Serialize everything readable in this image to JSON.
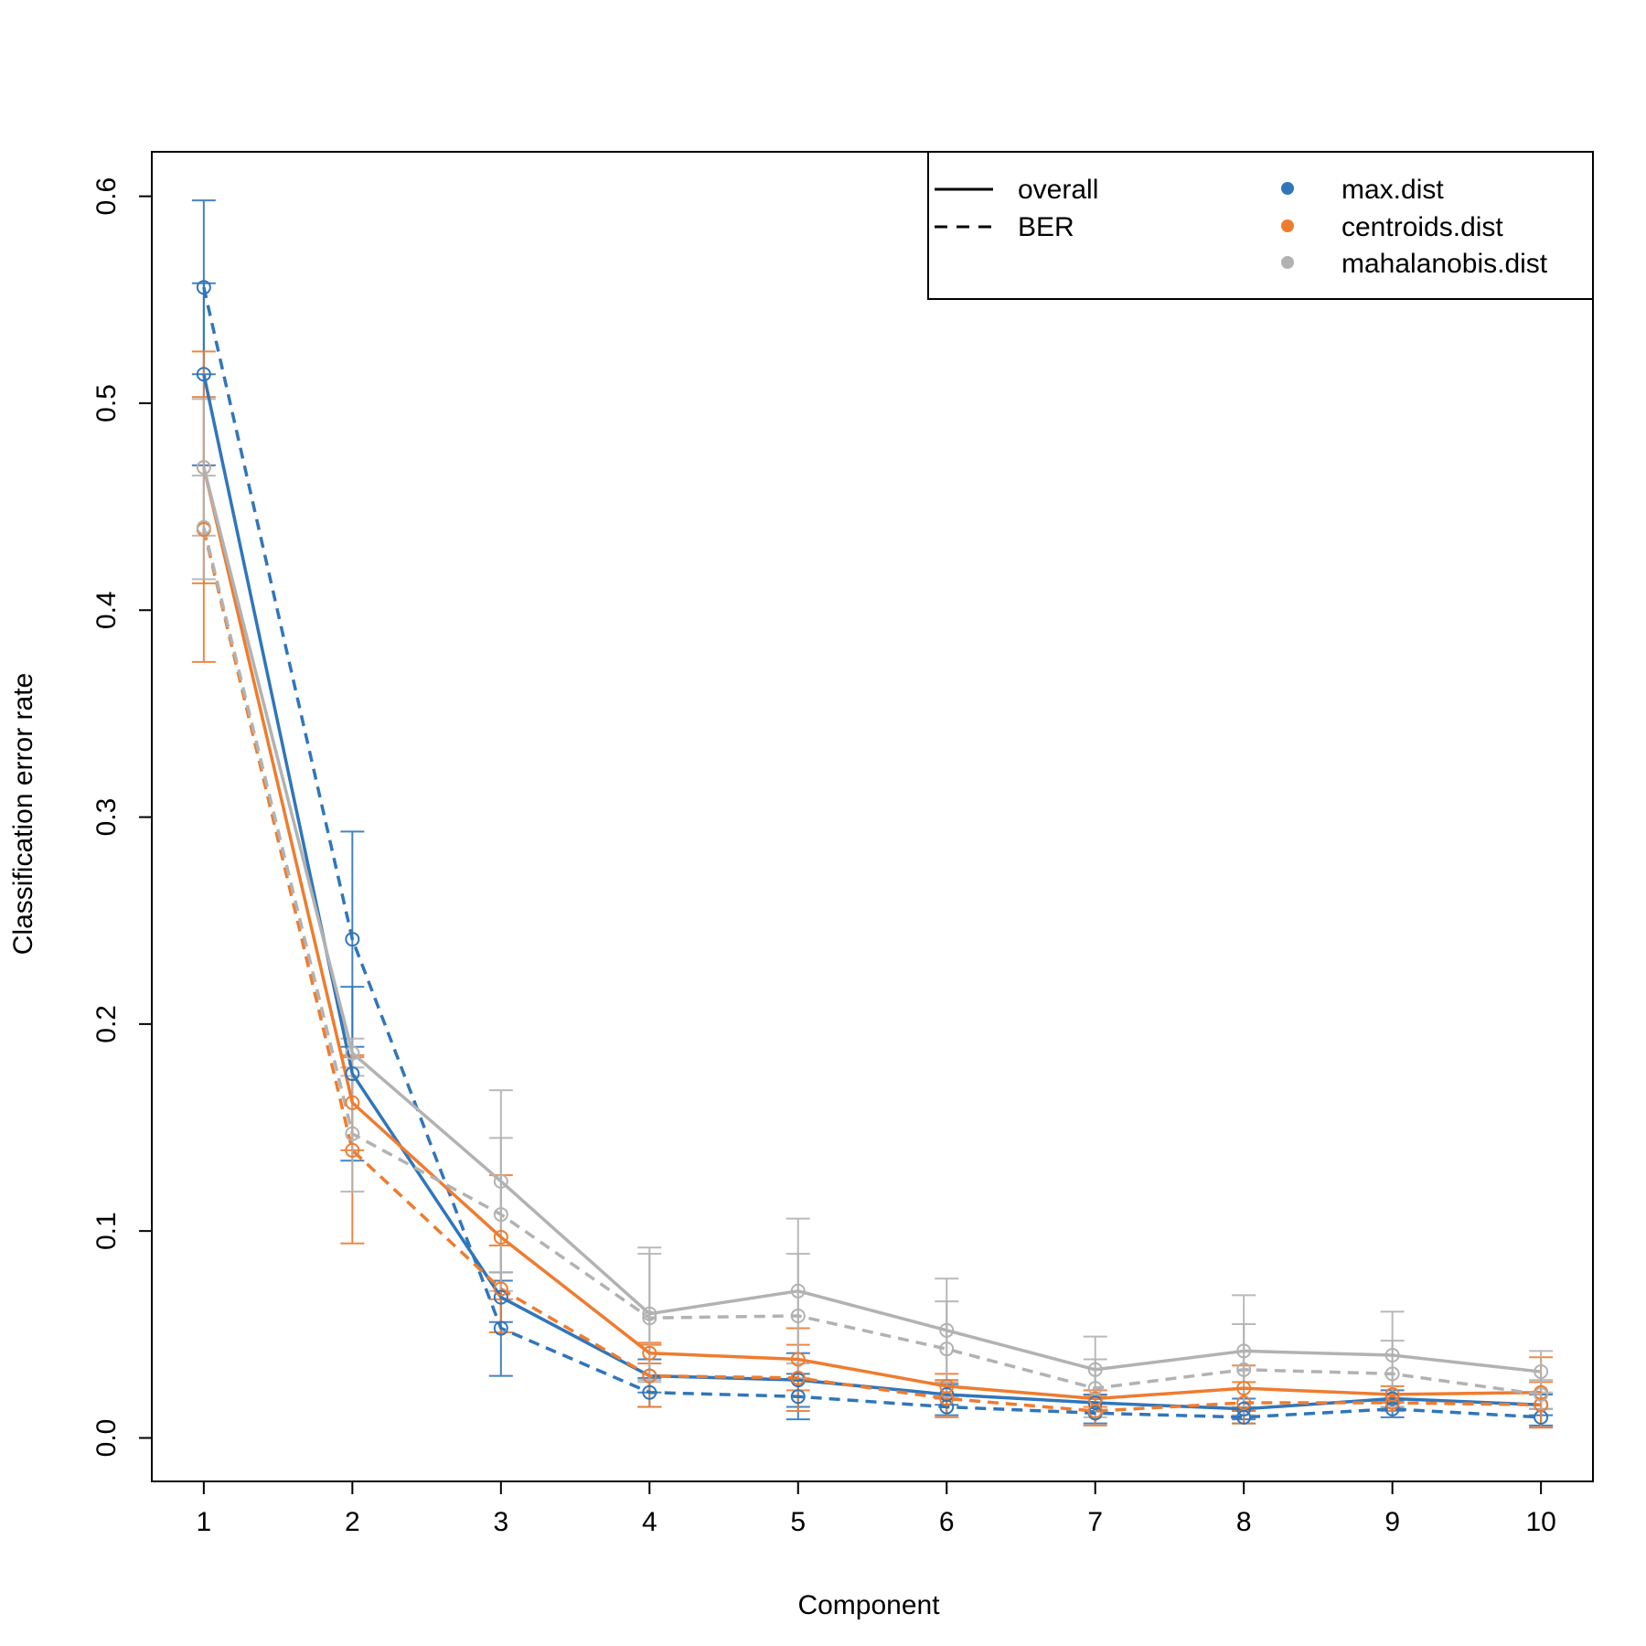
{
  "chart_data": {
    "type": "line",
    "title": "",
    "xlabel": "Component",
    "ylabel": "Classification error rate",
    "x": [
      1,
      2,
      3,
      4,
      5,
      6,
      7,
      8,
      9,
      10
    ],
    "xlim": [
      0.65,
      10.35
    ],
    "ylim": [
      -0.021,
      0.6215
    ],
    "yticks": [
      0.0,
      0.1,
      0.2,
      0.3,
      0.4,
      0.5,
      0.6
    ],
    "ytick_labels": [
      "0.0",
      "0.1",
      "0.2",
      "0.3",
      "0.4",
      "0.5",
      "0.6"
    ],
    "xtick_labels": [
      "1",
      "2",
      "3",
      "4",
      "5",
      "6",
      "7",
      "8",
      "9",
      "10"
    ],
    "legend": {
      "position": "top-right",
      "line_types": [
        {
          "label": "overall",
          "dash": "solid"
        },
        {
          "label": "BER",
          "dash": "dashed"
        }
      ],
      "distances": [
        {
          "label": "max.dist",
          "color": "#3076BA"
        },
        {
          "label": "centroids.dist",
          "color": "#EE7C2F"
        },
        {
          "label": "mahalanobis.dist",
          "color": "#B2B2B2"
        }
      ]
    },
    "series": [
      {
        "distance": "max.dist",
        "measure": "overall",
        "color": "#3076BA",
        "dash": "solid",
        "values": [
          0.514,
          0.176,
          0.068,
          0.03,
          0.028,
          0.021,
          0.017,
          0.014,
          0.019,
          0.016
        ],
        "err": [
          0.044,
          0.042,
          0.012,
          0.008,
          0.013,
          0.005,
          0.004,
          0.005,
          0.004,
          0.005
        ]
      },
      {
        "distance": "max.dist",
        "measure": "BER",
        "color": "#3076BA",
        "dash": "dashed",
        "values": [
          0.556,
          0.241,
          0.053,
          0.022,
          0.02,
          0.015,
          0.012,
          0.01,
          0.014,
          0.01
        ],
        "err": [
          0.042,
          0.052,
          0.023,
          0.007,
          0.011,
          0.004,
          0.005,
          0.003,
          0.004,
          0.004
        ]
      },
      {
        "distance": "centroids.dist",
        "measure": "overall",
        "color": "#EE7C2F",
        "dash": "solid",
        "values": [
          0.469,
          0.162,
          0.097,
          0.041,
          0.038,
          0.025,
          0.019,
          0.024,
          0.021,
          0.022
        ],
        "err": [
          0.056,
          0.023,
          0.03,
          0.005,
          0.015,
          0.006,
          0.004,
          0.011,
          0.004,
          0.017
        ]
      },
      {
        "distance": "centroids.dist",
        "measure": "BER",
        "color": "#EE7C2F",
        "dash": "dashed",
        "values": [
          0.439,
          0.139,
          0.072,
          0.03,
          0.029,
          0.019,
          0.013,
          0.017,
          0.017,
          0.016
        ],
        "err": [
          0.064,
          0.045,
          0.021,
          0.015,
          0.016,
          0.009,
          0.007,
          0.01,
          0.004,
          0.011
        ]
      },
      {
        "distance": "mahalanobis.dist",
        "measure": "overall",
        "color": "#B2B2B2",
        "dash": "solid",
        "values": [
          0.469,
          0.186,
          0.124,
          0.06,
          0.071,
          0.052,
          0.033,
          0.042,
          0.04,
          0.032
        ],
        "err": [
          0.033,
          0.007,
          0.044,
          0.032,
          0.035,
          0.025,
          0.016,
          0.027,
          0.021,
          0.01
        ]
      },
      {
        "distance": "mahalanobis.dist",
        "measure": "BER",
        "color": "#B2B2B2",
        "dash": "dashed",
        "values": [
          0.44,
          0.147,
          0.108,
          0.058,
          0.059,
          0.043,
          0.024,
          0.033,
          0.031,
          0.021
        ],
        "err": [
          0.025,
          0.028,
          0.037,
          0.031,
          0.03,
          0.023,
          0.014,
          0.022,
          0.016,
          0.007
        ]
      }
    ]
  }
}
